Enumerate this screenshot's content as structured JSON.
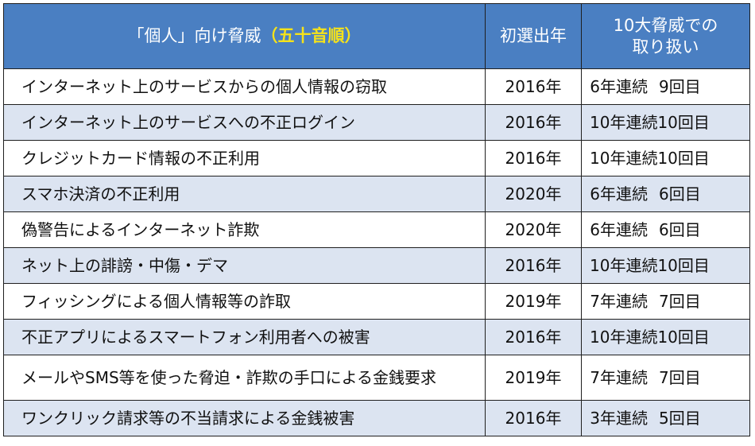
{
  "header": {
    "threat_prefix": "「個人」向け脅威",
    "threat_accent": "（五十音順）",
    "first_year": "初選出年",
    "count_line1": "10大脅威での",
    "count_line2": "取り扱い"
  },
  "rows": [
    {
      "threat": "インターネット上のサービスからの個人情報の窃取",
      "year": "2016年",
      "streak": "6",
      "streak_label": "年連続",
      "times": "9",
      "times_label": "回目"
    },
    {
      "threat": "インターネット上のサービスへの不正ログイン",
      "year": "2016年",
      "streak": "10",
      "streak_label": "年連続",
      "times": "10",
      "times_label": "回目"
    },
    {
      "threat": "クレジットカード情報の不正利用",
      "year": "2016年",
      "streak": "10",
      "streak_label": "年連続",
      "times": "10",
      "times_label": "回目"
    },
    {
      "threat": "スマホ決済の不正利用",
      "year": "2020年",
      "streak": "6",
      "streak_label": "年連続",
      "times": "6",
      "times_label": "回目"
    },
    {
      "threat": "偽警告によるインターネット詐欺",
      "year": "2020年",
      "streak": "6",
      "streak_label": "年連続",
      "times": "6",
      "times_label": "回目"
    },
    {
      "threat": "ネット上の誹謗・中傷・デマ",
      "year": "2016年",
      "streak": "10",
      "streak_label": "年連続",
      "times": "10",
      "times_label": "回目"
    },
    {
      "threat": "フィッシングによる個人情報等の詐取",
      "year": "2019年",
      "streak": "7",
      "streak_label": "年連続",
      "times": "7",
      "times_label": "回目"
    },
    {
      "threat": "不正アプリによるスマートフォン利用者への被害",
      "year": "2016年",
      "streak": "10",
      "streak_label": "年連続",
      "times": "10",
      "times_label": "回目"
    },
    {
      "threat": "メールやSMS等を使った脅迫・詐欺の手口による金銭要求",
      "year": "2019年",
      "streak": "7",
      "streak_label": "年連続",
      "times": "7",
      "times_label": "回目"
    },
    {
      "threat": "ワンクリック請求等の不当請求による金銭被害",
      "year": "2016年",
      "streak": "3",
      "streak_label": "年連続",
      "times": "5",
      "times_label": "回目"
    }
  ]
}
